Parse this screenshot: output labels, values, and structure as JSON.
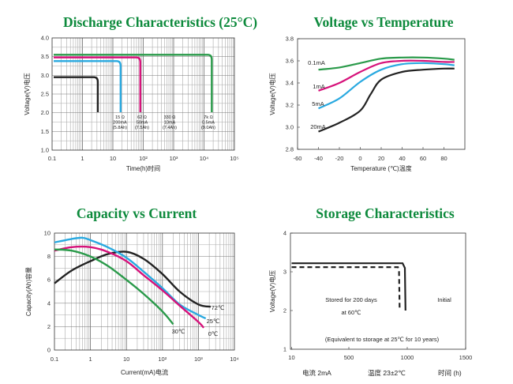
{
  "chart_data": [
    {
      "id": "discharge",
      "type": "line",
      "title": "Discharge Characteristics (25°C)",
      "xlabel": "Time(h)时间",
      "ylabel": "Voltage(V)电压",
      "xscale": "log",
      "xlim": [
        0.1,
        100000
      ],
      "ylim": [
        1.0,
        4.0
      ],
      "xticks": [
        "0.1",
        "1",
        "10",
        "10²",
        "10³",
        "10⁴",
        "10⁵"
      ],
      "yticks": [
        "1.0",
        "1.5",
        "2.0",
        "2.5",
        "3.0",
        "3.5",
        "4.0"
      ],
      "grid": true,
      "series": [
        {
          "color": "#222222",
          "plateau_v": 2.95,
          "end_h": 3.2,
          "label": [
            "15 Ω",
            "200mA",
            "(5.8Ah)"
          ]
        },
        {
          "color": "#29a9e0",
          "plateau_v": 3.38,
          "end_h": 18,
          "label": [
            "62 Ω",
            "50mA",
            "(7.5Ah)"
          ]
        },
        {
          "color": "#d6127a",
          "plateau_v": 3.48,
          "end_h": 80,
          "label": [
            "330 Ω",
            "10mA",
            "(7.4Ah)"
          ]
        },
        {
          "color": "#2a9a4a",
          "plateau_v": 3.55,
          "end_h": 18000,
          "label": [
            "7k Ω",
            "0.5mA",
            "(9.0Ah)"
          ]
        }
      ]
    },
    {
      "id": "voltage_temperature",
      "type": "line",
      "title": "Voltage vs Temperature",
      "xlabel": "Temperature (℃)温度",
      "ylabel": "Voltage(V)电压",
      "xlim": [
        -60,
        100
      ],
      "ylim": [
        2.8,
        3.8
      ],
      "xticks": [
        "-60",
        "-40",
        "-20",
        "0",
        "20",
        "40",
        "60",
        "80"
      ],
      "yticks": [
        "2.8",
        "3.0",
        "3.2",
        "3.4",
        "3.6",
        "3.8"
      ],
      "series": [
        {
          "name": "0.1mA",
          "color": "#2a9a4a",
          "points": [
            [
              -40,
              3.52
            ],
            [
              -20,
              3.54
            ],
            [
              0,
              3.58
            ],
            [
              20,
              3.62
            ],
            [
              40,
              3.63
            ],
            [
              60,
              3.63
            ],
            [
              80,
              3.62
            ],
            [
              90,
              3.61
            ]
          ]
        },
        {
          "name": "1mA",
          "color": "#d6127a",
          "points": [
            [
              -40,
              3.33
            ],
            [
              -20,
              3.4
            ],
            [
              0,
              3.5
            ],
            [
              20,
              3.58
            ],
            [
              40,
              3.6
            ],
            [
              60,
              3.6
            ],
            [
              80,
              3.59
            ],
            [
              90,
              3.59
            ]
          ]
        },
        {
          "name": "5mA",
          "color": "#29a9e0",
          "points": [
            [
              -40,
              3.17
            ],
            [
              -20,
              3.26
            ],
            [
              0,
              3.41
            ],
            [
              20,
              3.52
            ],
            [
              40,
              3.57
            ],
            [
              60,
              3.58
            ],
            [
              80,
              3.57
            ],
            [
              90,
              3.56
            ]
          ]
        },
        {
          "name": "20mA",
          "color": "#222222",
          "points": [
            [
              -40,
              2.96
            ],
            [
              -20,
              3.04
            ],
            [
              0,
              3.15
            ],
            [
              10,
              3.3
            ],
            [
              20,
              3.43
            ],
            [
              40,
              3.5
            ],
            [
              60,
              3.52
            ],
            [
              80,
              3.53
            ],
            [
              90,
              3.53
            ]
          ]
        }
      ]
    },
    {
      "id": "capacity_current",
      "type": "line",
      "title": "Capacity vs Current",
      "xlabel": "Current(mA)电流",
      "ylabel": "Capacity(Ah)容量",
      "xscale": "log",
      "xlim": [
        0.1,
        10000
      ],
      "ylim": [
        0,
        10
      ],
      "xticks": [
        "0.1",
        "1",
        "10",
        "10²",
        "10³",
        "10⁴"
      ],
      "yticks": [
        "0",
        "2",
        "4",
        "6",
        "8",
        "10"
      ],
      "series": [
        {
          "name": "72℃",
          "color": "#222222",
          "points": [
            [
              0.1,
              5.7
            ],
            [
              0.3,
              6.8
            ],
            [
              1,
              7.6
            ],
            [
              3,
              8.2
            ],
            [
              10,
              8.4
            ],
            [
              30,
              7.8
            ],
            [
              100,
              6.5
            ],
            [
              300,
              5.0
            ],
            [
              1000,
              3.9
            ],
            [
              2200,
              3.7
            ]
          ]
        },
        {
          "name": "25℃",
          "color": "#29a9e0",
          "points": [
            [
              0.1,
              9.2
            ],
            [
              0.3,
              9.5
            ],
            [
              0.6,
              9.6
            ],
            [
              1,
              9.4
            ],
            [
              3,
              8.8
            ],
            [
              10,
              7.9
            ],
            [
              30,
              6.7
            ],
            [
              100,
              5.3
            ],
            [
              300,
              3.9
            ],
            [
              1000,
              3.0
            ],
            [
              1600,
              2.7
            ]
          ]
        },
        {
          "name": "0℃",
          "color": "#d6127a",
          "points": [
            [
              0.1,
              8.5
            ],
            [
              0.3,
              8.8
            ],
            [
              1,
              8.8
            ],
            [
              3,
              8.4
            ],
            [
              10,
              7.6
            ],
            [
              30,
              6.4
            ],
            [
              100,
              5.1
            ],
            [
              300,
              3.8
            ],
            [
              1000,
              2.4
            ],
            [
              1400,
              1.9
            ]
          ]
        },
        {
          "name": "30℃",
          "color": "#2a9a4a",
          "points": [
            [
              0.1,
              8.6
            ],
            [
              0.3,
              8.5
            ],
            [
              1,
              8.0
            ],
            [
              3,
              7.2
            ],
            [
              10,
              6.0
            ],
            [
              30,
              4.8
            ],
            [
              100,
              3.3
            ],
            [
              200,
              2.2
            ]
          ]
        }
      ]
    },
    {
      "id": "storage",
      "type": "line",
      "title": "Storage Characteristics",
      "ylabel": "Voltage(V)电压",
      "xlim": [
        0,
        1500
      ],
      "ylim": [
        1,
        4
      ],
      "xticks": [
        "10",
        "500",
        "1000",
        "1500"
      ],
      "yticks": [
        "1",
        "2",
        "3",
        "4"
      ],
      "series": [
        {
          "name": "Initial",
          "color": "#222222",
          "style": "solid",
          "points": [
            [
              10,
              3.22
            ],
            [
              960,
              3.22
            ],
            [
              980,
              3.1
            ],
            [
              985,
              2.0
            ]
          ]
        },
        {
          "name": "Stored for 200 days at 60℃",
          "color": "#222222",
          "style": "dashed",
          "points": [
            [
              10,
              3.12
            ],
            [
              920,
              3.12
            ],
            [
              930,
              3.0
            ],
            [
              935,
              2.0
            ]
          ]
        }
      ],
      "annotations": {
        "stored": [
          "Stored for 200 days",
          "at 60℃"
        ],
        "initial": "Initial",
        "equivalent": "(Equivalent to storage at 25℃ for 10 years)"
      },
      "footer": [
        "电流  2mA",
        "温度  23±2℃",
        "时间 (h)"
      ]
    }
  ]
}
